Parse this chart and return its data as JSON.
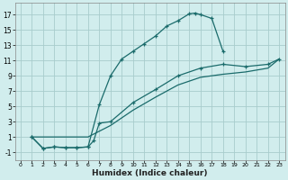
{
  "bg_color": "#d1eded",
  "grid_color": "#a8cccc",
  "line_color": "#1a6b6b",
  "xlim": [
    -0.5,
    23.5
  ],
  "ylim": [
    -2,
    18.5
  ],
  "yticks": [
    -1,
    1,
    3,
    5,
    7,
    9,
    11,
    13,
    15,
    17
  ],
  "xticks": [
    0,
    1,
    2,
    3,
    4,
    5,
    6,
    7,
    8,
    9,
    10,
    11,
    12,
    13,
    14,
    15,
    16,
    17,
    18,
    19,
    20,
    21,
    22,
    23
  ],
  "xlabel": "Humidex (Indice chaleur)",
  "curve1_x": [
    1,
    2,
    3,
    4,
    5,
    6,
    7,
    8,
    9,
    10,
    11,
    12,
    13,
    14,
    15,
    15.5,
    16,
    17,
    18
  ],
  "curve1_y": [
    1,
    -0.5,
    -0.3,
    -0.4,
    -0.4,
    -0.3,
    5.2,
    9.0,
    11.2,
    12.2,
    13.2,
    14.2,
    15.5,
    16.2,
    17.1,
    17.2,
    17.0,
    16.5,
    12.2
  ],
  "curve2_x": [
    1,
    2,
    3,
    4,
    5,
    6,
    6.5,
    7,
    8,
    10,
    12,
    14,
    16,
    18,
    20,
    22,
    23
  ],
  "curve2_y": [
    1,
    -0.5,
    -0.3,
    -0.4,
    -0.4,
    -0.3,
    0.5,
    2.8,
    3.0,
    5.5,
    7.2,
    9.0,
    10.0,
    10.5,
    10.2,
    10.5,
    11.2
  ],
  "curve3_x": [
    1,
    6,
    8,
    10,
    12,
    14,
    16,
    18,
    20,
    22,
    23
  ],
  "curve3_y": [
    1,
    1.0,
    2.5,
    4.5,
    6.2,
    7.8,
    8.8,
    9.2,
    9.5,
    10.0,
    11.2
  ],
  "marker_curve1_x": [
    1,
    2,
    3,
    4,
    5,
    6,
    7,
    8,
    9,
    10,
    11,
    12,
    13,
    14,
    15,
    15.5,
    16,
    17,
    18
  ],
  "marker_curve1_y": [
    1,
    -0.5,
    -0.3,
    -0.4,
    -0.4,
    -0.3,
    5.2,
    9.0,
    11.2,
    12.2,
    13.2,
    14.2,
    15.5,
    16.2,
    17.1,
    17.2,
    17.0,
    16.5,
    12.2
  ],
  "marker_curve2_x": [
    1,
    2,
    3,
    4,
    5,
    6,
    6.5,
    7,
    8,
    10,
    12,
    14,
    16,
    18,
    20,
    22,
    23
  ],
  "marker_curve2_y": [
    1,
    -0.5,
    -0.3,
    -0.4,
    -0.4,
    -0.3,
    0.5,
    2.8,
    3.0,
    5.5,
    7.2,
    9.0,
    10.0,
    10.5,
    10.2,
    10.5,
    11.2
  ]
}
